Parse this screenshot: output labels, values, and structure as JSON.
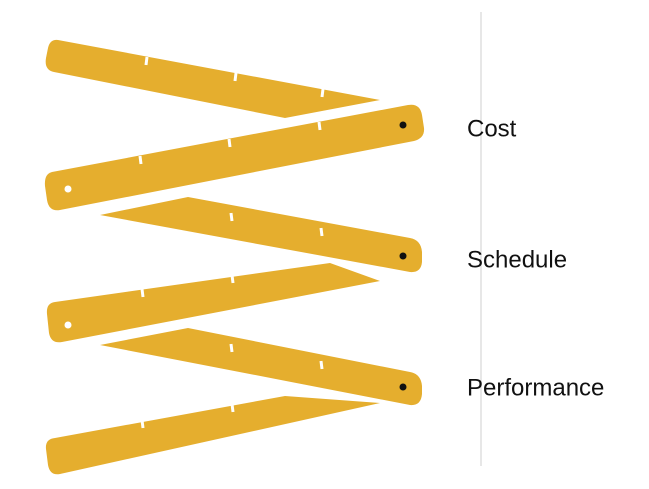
{
  "labels": [
    "Cost",
    "Schedule",
    "Performance"
  ]
}
